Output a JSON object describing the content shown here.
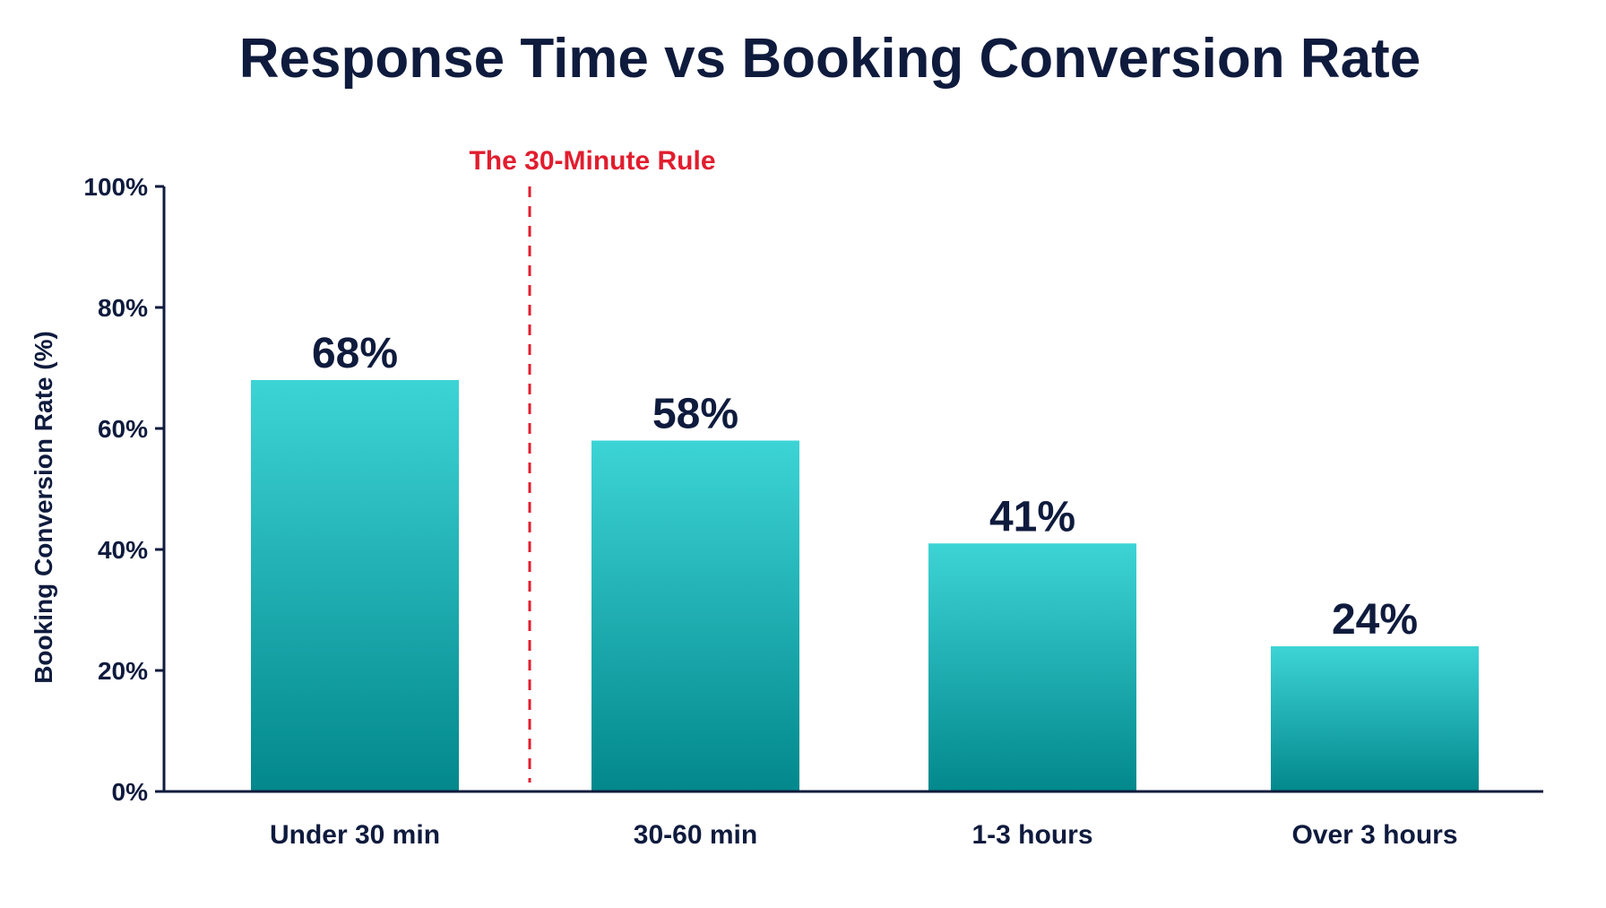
{
  "chart_data": {
    "type": "bar",
    "title": "Response Time vs Booking Conversion Rate",
    "xlabel": "",
    "ylabel": "Booking Conversion Rate (%)",
    "categories": [
      "Under 30 min",
      "30-60 min",
      "1-3 hours",
      "Over 3 hours"
    ],
    "values": [
      68,
      58,
      41,
      24
    ],
    "data_labels": [
      "68%",
      "58%",
      "41%",
      "24%"
    ],
    "ylim": [
      0,
      100
    ],
    "yticks": [
      0,
      20,
      40,
      60,
      80,
      100
    ],
    "ytick_labels": [
      "0%",
      "20%",
      "40%",
      "60%",
      "80%",
      "100%"
    ],
    "grid": false,
    "legend": "none",
    "annotation": {
      "label": "The 30-Minute Rule",
      "position": "between Under 30 min and 30-60 min",
      "style": "dashed vertical line",
      "color": "#e11d2e"
    },
    "colors": {
      "bar_top": "#3dd4d6",
      "bar_bottom": "#02888c",
      "text": "#0f1b3d",
      "axis": "#0f1b3d"
    }
  }
}
